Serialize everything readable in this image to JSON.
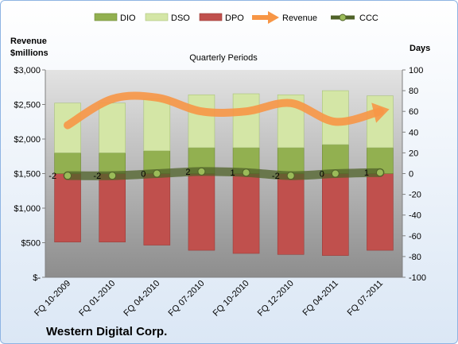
{
  "company": "Western Digital Corp.",
  "chart_data": {
    "type": "bar",
    "title": "Quarterly Periods",
    "categories": [
      "FQ 10-2009",
      "FQ 01-2010",
      "FQ 04-2010",
      "FQ 07-2010",
      "FQ 10-2010",
      "FQ 12-2010",
      "FQ 04-2011",
      "FQ 07-2011"
    ],
    "left_axis": {
      "label_line1": "Revenue",
      "label_line2": "$millions",
      "ylim": [
        0,
        3000
      ],
      "ticks": [
        0,
        500,
        1000,
        1500,
        2000,
        2500,
        3000
      ],
      "tick_labels": [
        "$-",
        "$500",
        "$1,000",
        "$1,500",
        "$2,000",
        "$2,500",
        "$3,000"
      ]
    },
    "right_axis": {
      "label": "Days",
      "ylim": [
        -100,
        100
      ],
      "ticks": [
        -100,
        -80,
        -60,
        -40,
        -20,
        0,
        20,
        40,
        60,
        80,
        100
      ],
      "tick_labels": [
        "-100",
        "-80",
        "-60",
        "-40",
        "-20",
        "0",
        "20",
        "40",
        "60",
        "80",
        "100"
      ]
    },
    "legend_position": "top",
    "grid": false,
    "series": [
      {
        "name": "DIO",
        "axis": "right",
        "stack": "positive",
        "color": "#92b050",
        "values": [
          20,
          20,
          22,
          25,
          25,
          25,
          28,
          25
        ]
      },
      {
        "name": "DSO",
        "axis": "right",
        "stack": "positive",
        "color": "#d4e6a6",
        "values": [
          48,
          48,
          50,
          51,
          52,
          51,
          52,
          50
        ]
      },
      {
        "name": "DPO",
        "axis": "right",
        "stack": "negative",
        "color": "#c0504d",
        "values": [
          -66,
          -66,
          -69,
          -74,
          -77,
          -78,
          -79,
          -74
        ]
      },
      {
        "name": "Revenue",
        "axis": "left",
        "type": "line",
        "color": "#f79646",
        "values": [
          2200,
          2580,
          2600,
          2400,
          2400,
          2520,
          2250,
          2400
        ]
      },
      {
        "name": "CCC",
        "axis": "right",
        "type": "line",
        "color": "#4f6228",
        "values": [
          -2,
          -2,
          0,
          2,
          1,
          -2,
          0,
          1
        ],
        "data_labels": [
          "-2",
          "-2",
          "0",
          "2",
          "1",
          "-2",
          "0",
          "1"
        ]
      }
    ]
  }
}
